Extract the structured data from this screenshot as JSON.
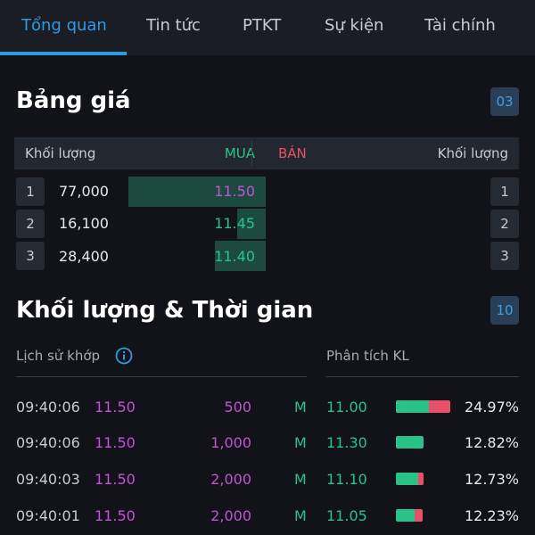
{
  "tabs": [
    "Tổng quan",
    "Tin tức",
    "PTKT",
    "Sự kiện",
    "Tài chính"
  ],
  "price_board": {
    "title": "Bảng giá",
    "badge": "03",
    "headers": {
      "bid_volume": "Khối lượng",
      "buy": "MUA",
      "sell": "BÁN",
      "ask_volume": "Khối lượng"
    },
    "bids": [
      {
        "index": "1",
        "volume": "77,000",
        "price": "11.50",
        "depth": 1.0
      },
      {
        "index": "2",
        "volume": "16,100",
        "price": "11.45",
        "depth": 0.21
      },
      {
        "index": "3",
        "volume": "28,400",
        "price": "11.40",
        "depth": 0.37
      }
    ],
    "asks": [
      {
        "index": "1"
      },
      {
        "index": "2"
      },
      {
        "index": "3"
      }
    ]
  },
  "volume_time": {
    "title": "Khối lượng & Thời gian",
    "badge": "10",
    "history_label": "Lịch sử khớp",
    "analysis_label": "Phân tích KL",
    "matches": [
      {
        "time": "09:40:06",
        "price": "11.50",
        "volume": "500",
        "side": "M"
      },
      {
        "time": "09:40:06",
        "price": "11.50",
        "volume": "1,000",
        "side": "M"
      },
      {
        "time": "09:40:03",
        "price": "11.50",
        "volume": "2,000",
        "side": "M"
      },
      {
        "time": "09:40:01",
        "price": "11.50",
        "volume": "2,000",
        "side": "M"
      }
    ],
    "analysis": [
      {
        "price": "11.00",
        "percent": "24.97%",
        "buy_share": 0.6,
        "sell_share": 0.4,
        "level": 1.0
      },
      {
        "price": "11.30",
        "percent": "12.82%",
        "buy_share": 1.0,
        "sell_share": 0.0,
        "level": 0.51
      },
      {
        "price": "11.10",
        "percent": "12.73%",
        "buy_share": 0.8,
        "sell_share": 0.2,
        "level": 0.51
      },
      {
        "price": "11.05",
        "percent": "12.23%",
        "buy_share": 0.7,
        "sell_share": 0.3,
        "level": 0.49
      }
    ]
  },
  "colors": {
    "accent": "#2b9be6",
    "buy": "#29c389",
    "sell": "#e8506a",
    "match_price": "#c452d6",
    "depth_bar": "#1d4a3e"
  }
}
